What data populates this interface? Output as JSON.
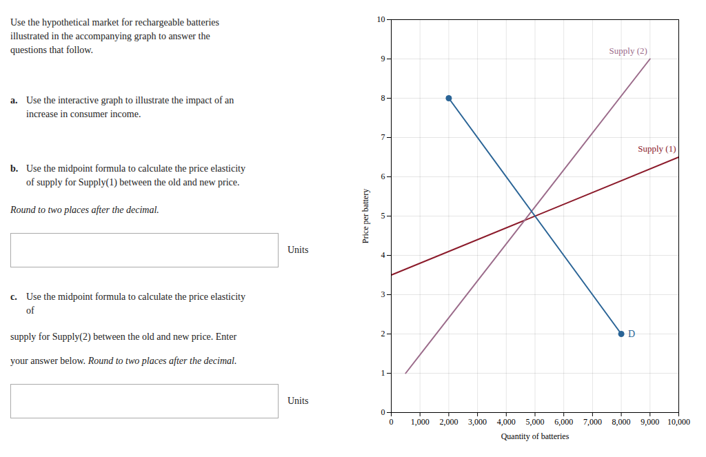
{
  "chart_data": {
    "type": "line",
    "title": "",
    "xlabel": "Quantity of batteries",
    "ylabel": "Price per battery",
    "xlim": [
      0,
      10000
    ],
    "ylim": [
      0,
      10
    ],
    "xticks": [
      {
        "value": 0,
        "label": "0"
      },
      {
        "value": 1000,
        "label": "1,000"
      },
      {
        "value": 2000,
        "label": "2,000"
      },
      {
        "value": 3000,
        "label": "3,000"
      },
      {
        "value": 4000,
        "label": "4,000"
      },
      {
        "value": 5000,
        "label": "5,000"
      },
      {
        "value": 6000,
        "label": "6,000"
      },
      {
        "value": 7000,
        "label": "7,000"
      },
      {
        "value": 8000,
        "label": "8,000"
      },
      {
        "value": 9000,
        "label": "9,000"
      },
      {
        "value": 10000,
        "label": "10,000"
      }
    ],
    "yticks": [
      0,
      1,
      2,
      3,
      4,
      5,
      6,
      7,
      8,
      9,
      10
    ],
    "grid": true,
    "series": [
      {
        "name": "Supply (1)",
        "color": "#8b1a2a",
        "x": [
          0,
          10000
        ],
        "values": [
          3.5,
          6.5
        ]
      },
      {
        "name": "Supply (2)",
        "color": "#9b6b8a",
        "x": [
          500,
          9000
        ],
        "values": [
          1,
          9
        ]
      },
      {
        "name": "D",
        "color": "#2a6496",
        "x": [
          2000,
          8000
        ],
        "values": [
          8,
          2
        ],
        "marker": "circle"
      }
    ],
    "annotations": [
      "Use the hypothetical market for rechargeable batteries\nillustrated in the accompanying graph to answer the\nquestions that follow.",
      "a.",
      "Use the interactive graph to illustrate the impact of an\nincrease in consumer income.",
      "b.",
      "Use the midpoint formula to calculate the price elasticity\nof supply for Supply(1) between the old and new price.",
      "Round to two places after the decimal.",
      "Units",
      "c.",
      "Use the midpoint formula to calculate the price elasticity\nof",
      "supply for Supply(2) between the old and new price. Enter",
      "your answer below.",
      "Round to two places after the decimal.",
      "Units"
    ]
  }
}
